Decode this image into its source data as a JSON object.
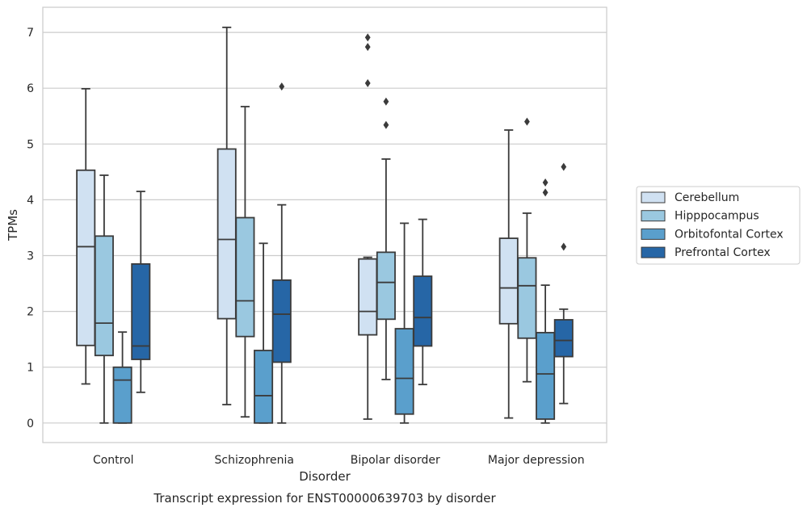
{
  "chart_data": {
    "type": "box",
    "caption": "Transcript expression for ENST00000639703 by disorder",
    "xlabel": "Disorder",
    "ylabel": "TPMs",
    "ylim": [
      -0.35,
      7.45
    ],
    "yticks": [
      0,
      1,
      2,
      3,
      4,
      5,
      6,
      7
    ],
    "grid": "horizontal",
    "legend_position": "right",
    "categories": [
      "Control",
      "Schizophrenia",
      "Bipolar disorder",
      "Major depression"
    ],
    "series": [
      {
        "name": "Cerebellum",
        "color": "#d0e1f2",
        "boxes": [
          {
            "whislo": 0.7,
            "q1": 1.39,
            "med": 3.16,
            "q3": 4.53,
            "whishi": 5.99,
            "fliers": []
          },
          {
            "whislo": 0.33,
            "q1": 1.87,
            "med": 3.29,
            "q3": 4.91,
            "whishi": 7.09,
            "fliers": []
          },
          {
            "whislo": 0.07,
            "q1": 1.58,
            "med": 2.0,
            "q3": 2.94,
            "whishi": 2.97,
            "fliers": [
              6.09,
              6.74,
              6.91
            ]
          },
          {
            "whislo": 0.09,
            "q1": 1.78,
            "med": 2.42,
            "q3": 3.31,
            "whishi": 5.25,
            "fliers": []
          }
        ]
      },
      {
        "name": "Hipppocampus",
        "color": "#9ac8e0",
        "boxes": [
          {
            "whislo": 0.0,
            "q1": 1.21,
            "med": 1.79,
            "q3": 3.35,
            "whishi": 4.44,
            "fliers": []
          },
          {
            "whislo": 0.11,
            "q1": 1.55,
            "med": 2.19,
            "q3": 3.68,
            "whishi": 5.67,
            "fliers": []
          },
          {
            "whislo": 0.78,
            "q1": 1.86,
            "med": 2.52,
            "q3": 3.06,
            "whishi": 4.73,
            "fliers": [
              5.34,
              5.76
            ]
          },
          {
            "whislo": 0.74,
            "q1": 1.52,
            "med": 2.46,
            "q3": 2.96,
            "whishi": 3.76,
            "fliers": [
              5.4
            ]
          }
        ]
      },
      {
        "name": "Orbitofontal Cortex",
        "color": "#5a9fcc",
        "boxes": [
          {
            "whislo": 0.0,
            "q1": 0.0,
            "med": 0.77,
            "q3": 1.0,
            "whishi": 1.63,
            "fliers": []
          },
          {
            "whislo": 0.0,
            "q1": 0.0,
            "med": 0.49,
            "q3": 1.3,
            "whishi": 3.22,
            "fliers": []
          },
          {
            "whislo": 0.0,
            "q1": 0.16,
            "med": 0.8,
            "q3": 1.69,
            "whishi": 3.58,
            "fliers": []
          },
          {
            "whislo": 0.0,
            "q1": 0.07,
            "med": 0.88,
            "q3": 1.62,
            "whishi": 2.47,
            "fliers": [
              4.13,
              4.31
            ]
          }
        ]
      },
      {
        "name": "Prefrontal Cortex",
        "color": "#2666a6",
        "boxes": [
          {
            "whislo": 0.55,
            "q1": 1.14,
            "med": 1.38,
            "q3": 2.85,
            "whishi": 4.15,
            "fliers": []
          },
          {
            "whislo": 0.0,
            "q1": 1.09,
            "med": 1.95,
            "q3": 2.56,
            "whishi": 3.91,
            "fliers": [
              6.03
            ]
          },
          {
            "whislo": 0.69,
            "q1": 1.38,
            "med": 1.89,
            "q3": 2.63,
            "whishi": 3.65,
            "fliers": []
          },
          {
            "whislo": 0.35,
            "q1": 1.19,
            "med": 1.48,
            "q3": 1.85,
            "whishi": 2.04,
            "fliers": [
              3.16,
              4.59
            ]
          }
        ]
      }
    ]
  }
}
